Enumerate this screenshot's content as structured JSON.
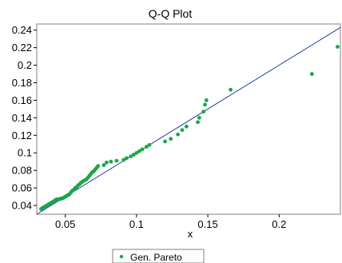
{
  "chart_data": {
    "type": "scatter",
    "title": "Q-Q Plot",
    "xlabel": "x",
    "ylabel": "",
    "xlim": [
      0.03,
      0.243
    ],
    "ylim": [
      0.03,
      0.247
    ],
    "x_ticks": [
      0.05,
      0.1,
      0.15,
      0.2
    ],
    "x_tick_labels": [
      "0.05",
      "0.1",
      "0.15",
      "0.2"
    ],
    "y_ticks": [
      0.04,
      0.06,
      0.08,
      0.1,
      0.12,
      0.14,
      0.16,
      0.18,
      0.2,
      0.22,
      0.24
    ],
    "y_tick_labels": [
      "0.04",
      "0.06",
      "0.08",
      "0.1",
      "0.12",
      "0.14",
      "0.16",
      "0.18",
      "0.2",
      "0.22",
      "0.24"
    ],
    "grid": false,
    "legend_position": "bottom-center",
    "reference_line": {
      "x": [
        0.03,
        0.243
      ],
      "y": [
        0.03,
        0.243
      ],
      "color": "#1f3f9e"
    },
    "series": [
      {
        "name": "Gen. Pareto",
        "color": "#1aa548",
        "points": [
          [
            0.033,
            0.036
          ],
          [
            0.034,
            0.037
          ],
          [
            0.035,
            0.038
          ],
          [
            0.036,
            0.039
          ],
          [
            0.037,
            0.04
          ],
          [
            0.038,
            0.041
          ],
          [
            0.039,
            0.042
          ],
          [
            0.04,
            0.043
          ],
          [
            0.041,
            0.044
          ],
          [
            0.042,
            0.045
          ],
          [
            0.043,
            0.046
          ],
          [
            0.044,
            0.047
          ],
          [
            0.045,
            0.047
          ],
          [
            0.046,
            0.047
          ],
          [
            0.047,
            0.048
          ],
          [
            0.048,
            0.048
          ],
          [
            0.049,
            0.049
          ],
          [
            0.05,
            0.05
          ],
          [
            0.051,
            0.051
          ],
          [
            0.052,
            0.052
          ],
          [
            0.053,
            0.053
          ],
          [
            0.054,
            0.055
          ],
          [
            0.055,
            0.057
          ],
          [
            0.056,
            0.058
          ],
          [
            0.057,
            0.06
          ],
          [
            0.058,
            0.061
          ],
          [
            0.059,
            0.063
          ],
          [
            0.06,
            0.064
          ],
          [
            0.061,
            0.066
          ],
          [
            0.062,
            0.067
          ],
          [
            0.063,
            0.068
          ],
          [
            0.064,
            0.069
          ],
          [
            0.065,
            0.07
          ],
          [
            0.066,
            0.072
          ],
          [
            0.067,
            0.074
          ],
          [
            0.068,
            0.076
          ],
          [
            0.069,
            0.078
          ],
          [
            0.07,
            0.079
          ],
          [
            0.071,
            0.081
          ],
          [
            0.072,
            0.083
          ],
          [
            0.073,
            0.085
          ],
          [
            0.077,
            0.086
          ],
          [
            0.079,
            0.089
          ],
          [
            0.082,
            0.09
          ],
          [
            0.086,
            0.091
          ],
          [
            0.091,
            0.092
          ],
          [
            0.093,
            0.094
          ],
          [
            0.096,
            0.096
          ],
          [
            0.098,
            0.098
          ],
          [
            0.1,
            0.1
          ],
          [
            0.102,
            0.102
          ],
          [
            0.104,
            0.104
          ],
          [
            0.107,
            0.107
          ],
          [
            0.109,
            0.109
          ],
          [
            0.12,
            0.113
          ],
          [
            0.124,
            0.116
          ],
          [
            0.129,
            0.121
          ],
          [
            0.132,
            0.126
          ],
          [
            0.135,
            0.13
          ],
          [
            0.143,
            0.135
          ],
          [
            0.144,
            0.14
          ],
          [
            0.147,
            0.147
          ],
          [
            0.148,
            0.155
          ],
          [
            0.149,
            0.16
          ],
          [
            0.166,
            0.172
          ],
          [
            0.223,
            0.19
          ],
          [
            0.241,
            0.221
          ]
        ]
      }
    ]
  }
}
